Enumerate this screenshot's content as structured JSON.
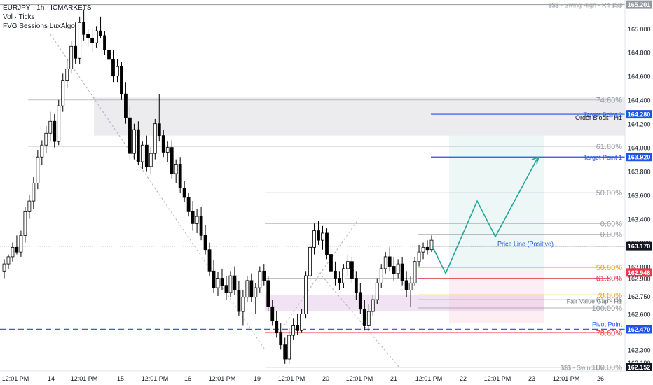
{
  "legend": {
    "symbol": "EURJPY · 1h · ICMARKETS",
    "indicator_1": "Vol · Ticks",
    "indicator_2": "FVG Sessions LuxAlgo"
  },
  "colors": {
    "bull": "#ffffff",
    "bear": "#000000",
    "price_tag": "#131722",
    "level_tag": "#1e53e5",
    "red_tag": "#f23645",
    "fib_gray": "#9598a1",
    "fib_orange": "#ff9800",
    "fib_red": "#f23645",
    "pivot": "#2962ff",
    "teal": "#26a69a"
  },
  "chart_data": {
    "type": "candlestick",
    "symbol": "EURJPY",
    "timeframe": "1h",
    "y_axis": {
      "ticks": [
        "165.000",
        "164.800",
        "164.600",
        "164.400",
        "164.200",
        "164.000",
        "163.800",
        "163.600",
        "163.400",
        "163.200",
        "163.000",
        "162.900",
        "162.750",
        "162.600",
        "162.300",
        "162.190"
      ],
      "ylim": [
        162.12,
        165.24
      ]
    },
    "x_axis": {
      "ticks": [
        "12:01 PM",
        "14",
        "12:01 PM",
        "15",
        "12:01 PM",
        "16",
        "12:01 PM",
        "19",
        "12:01 PM",
        "20",
        "12:01 PM",
        "21",
        "12:01 PM",
        "22",
        "12:01 PM",
        "23",
        "12:01 PM",
        "26"
      ]
    },
    "price_tags": [
      {
        "label": "165.201",
        "value": 165.201,
        "kind": "gray"
      },
      {
        "label": "164.280",
        "value": 164.28,
        "kind": "blue"
      },
      {
        "label": "163.920",
        "value": 163.92,
        "kind": "blue"
      },
      {
        "label": "163.170",
        "value": 163.17,
        "kind": "dark"
      },
      {
        "label": "162.948",
        "value": 162.948,
        "kind": "red"
      },
      {
        "label": "162.470",
        "value": 162.47,
        "kind": "blue"
      },
      {
        "label": "162.152",
        "value": 162.152,
        "kind": "dark"
      }
    ],
    "annotations": {
      "swing_high": "$$$ - Swing High - R4 $$$",
      "swing_low": "$$$ - Swing Lo",
      "order_block": "Order Block - H1",
      "target_point_2": "Target Point 2",
      "target_point_1": "Target Point 1",
      "price_line": "Price Line (Positive)",
      "fvg": "Fair Value Gap - H1",
      "pivot_point": "Pivot Point"
    },
    "fib_left": [
      {
        "label": "74.60%",
        "value": 164.4,
        "color": "gray"
      },
      {
        "label": "61.80%",
        "value": 164.01,
        "color": "gray"
      },
      {
        "label": "50.00%",
        "value": 163.62,
        "color": "gray"
      },
      {
        "label": "0.00%",
        "value": 163.36,
        "color": "gray"
      },
      {
        "label": "61.80%",
        "value": 162.9,
        "color": "gray"
      },
      {
        "label": "78.60%",
        "value": 162.44,
        "color": "red"
      },
      {
        "label": "100.00%",
        "value": 162.152,
        "color": "gray"
      }
    ],
    "fib_right": [
      {
        "label": "0.00%",
        "value": 163.27,
        "color": "gray"
      },
      {
        "label": "50.00%",
        "value": 162.99,
        "color": "orange"
      },
      {
        "label": "61.80%",
        "value": 162.9,
        "color": "red"
      },
      {
        "label": "78.60%",
        "value": 162.76,
        "color": "orange"
      },
      {
        "label": "61.80%",
        "value": 162.72,
        "color": "gray"
      },
      {
        "label": "100.00%",
        "value": 162.65,
        "color": "gray"
      }
    ],
    "candles": [
      [
        162.96,
        163.06,
        162.9,
        163.02
      ],
      [
        163.02,
        163.1,
        162.98,
        163.08
      ],
      [
        163.08,
        163.2,
        163.04,
        163.16
      ],
      [
        163.16,
        163.26,
        163.1,
        163.12
      ],
      [
        163.12,
        163.3,
        163.08,
        163.26
      ],
      [
        163.26,
        163.5,
        163.2,
        163.46
      ],
      [
        163.46,
        163.6,
        163.4,
        163.55
      ],
      [
        163.55,
        163.75,
        163.48,
        163.7
      ],
      [
        163.7,
        163.98,
        163.65,
        163.92
      ],
      [
        163.92,
        164.06,
        163.85,
        164.02
      ],
      [
        164.02,
        164.18,
        163.95,
        164.12
      ],
      [
        164.12,
        164.3,
        164.05,
        164.22
      ],
      [
        164.22,
        164.28,
        164.0,
        164.05
      ],
      [
        164.05,
        164.4,
        164.02,
        164.35
      ],
      [
        164.35,
        164.62,
        164.3,
        164.56
      ],
      [
        164.56,
        164.74,
        164.5,
        164.66
      ],
      [
        164.66,
        164.9,
        164.62,
        164.85
      ],
      [
        164.85,
        165.05,
        164.7,
        164.75
      ],
      [
        164.75,
        165.1,
        164.7,
        165.05
      ],
      [
        165.05,
        165.16,
        164.9,
        164.95
      ],
      [
        164.95,
        165.0,
        164.85,
        164.92
      ],
      [
        164.92,
        165.0,
        164.8,
        164.88
      ],
      [
        164.88,
        165.02,
        164.84,
        164.98
      ],
      [
        164.98,
        165.1,
        164.92,
        164.94
      ],
      [
        164.94,
        164.98,
        164.78,
        164.82
      ],
      [
        164.82,
        164.9,
        164.7,
        164.74
      ],
      [
        164.74,
        164.82,
        164.55,
        164.6
      ],
      [
        164.6,
        164.74,
        164.55,
        164.68
      ],
      [
        164.68,
        164.72,
        164.4,
        164.45
      ],
      [
        164.45,
        164.55,
        164.2,
        164.25
      ],
      [
        164.25,
        164.35,
        163.9,
        163.95
      ],
      [
        163.95,
        164.2,
        163.9,
        164.15
      ],
      [
        164.15,
        164.22,
        163.85,
        163.88
      ],
      [
        163.88,
        164.05,
        163.82,
        164.02
      ],
      [
        164.02,
        164.1,
        163.8,
        163.84
      ],
      [
        163.84,
        164.0,
        163.78,
        163.95
      ],
      [
        163.95,
        164.24,
        163.9,
        164.2
      ],
      [
        164.2,
        164.45,
        164.05,
        164.1
      ],
      [
        164.1,
        164.15,
        163.92,
        163.96
      ],
      [
        163.96,
        164.05,
        163.88,
        164.0
      ],
      [
        164.0,
        164.06,
        163.74,
        163.78
      ],
      [
        163.78,
        163.9,
        163.7,
        163.86
      ],
      [
        163.86,
        163.92,
        163.62,
        163.66
      ],
      [
        163.66,
        163.72,
        163.54,
        163.58
      ],
      [
        163.58,
        163.62,
        163.42,
        163.46
      ],
      [
        163.46,
        163.55,
        163.3,
        163.36
      ],
      [
        163.36,
        163.48,
        163.28,
        163.42
      ],
      [
        163.42,
        163.5,
        163.22,
        163.26
      ],
      [
        163.26,
        163.35,
        163.1,
        163.14
      ],
      [
        163.14,
        163.2,
        162.92,
        162.96
      ],
      [
        162.96,
        163.05,
        162.78,
        162.82
      ],
      [
        162.82,
        162.95,
        162.75,
        162.9
      ],
      [
        162.9,
        162.98,
        162.8,
        162.84
      ],
      [
        162.84,
        162.92,
        162.72,
        162.78
      ],
      [
        162.78,
        162.96,
        162.74,
        162.92
      ],
      [
        162.92,
        163.0,
        162.76,
        162.8
      ],
      [
        162.8,
        162.88,
        162.58,
        162.62
      ],
      [
        162.62,
        162.8,
        162.5,
        162.74
      ],
      [
        162.74,
        162.92,
        162.7,
        162.88
      ],
      [
        162.88,
        162.94,
        162.7,
        162.74
      ],
      [
        162.74,
        162.86,
        162.6,
        162.82
      ],
      [
        162.82,
        163.0,
        162.78,
        162.96
      ],
      [
        162.96,
        163.02,
        162.84,
        162.88
      ],
      [
        162.88,
        162.92,
        162.62,
        162.66
      ],
      [
        162.66,
        162.72,
        162.5,
        162.54
      ],
      [
        162.54,
        162.62,
        162.4,
        162.44
      ],
      [
        162.44,
        162.52,
        162.3,
        162.34
      ],
      [
        162.34,
        162.4,
        162.18,
        162.22
      ],
      [
        162.22,
        162.48,
        162.18,
        162.42
      ],
      [
        162.42,
        162.56,
        162.38,
        162.5
      ],
      [
        162.5,
        162.6,
        162.42,
        162.46
      ],
      [
        162.46,
        162.64,
        162.44,
        162.6
      ],
      [
        162.6,
        162.96,
        162.56,
        162.92
      ],
      [
        162.92,
        163.2,
        162.88,
        163.16
      ],
      [
        163.16,
        163.36,
        163.1,
        163.3
      ],
      [
        163.3,
        163.38,
        163.18,
        163.22
      ],
      [
        163.22,
        163.34,
        163.14,
        163.28
      ],
      [
        163.28,
        163.32,
        163.06,
        163.1
      ],
      [
        163.1,
        163.18,
        162.92,
        162.96
      ],
      [
        162.96,
        163.04,
        162.84,
        162.9
      ],
      [
        162.9,
        162.96,
        162.8,
        162.86
      ],
      [
        162.86,
        163.02,
        162.82,
        162.98
      ],
      [
        162.98,
        163.1,
        162.92,
        163.04
      ],
      [
        163.04,
        163.08,
        162.86,
        162.9
      ],
      [
        162.9,
        162.96,
        162.72,
        162.78
      ],
      [
        162.78,
        162.86,
        162.6,
        162.64
      ],
      [
        162.64,
        162.72,
        162.46,
        162.5
      ],
      [
        162.5,
        162.68,
        162.46,
        162.62
      ],
      [
        162.62,
        162.76,
        162.58,
        162.72
      ],
      [
        162.72,
        162.9,
        162.68,
        162.86
      ],
      [
        162.86,
        163.02,
        162.82,
        162.98
      ],
      [
        162.98,
        163.12,
        162.94,
        163.08
      ],
      [
        163.08,
        163.16,
        162.96,
        163.0
      ],
      [
        163.0,
        163.08,
        162.88,
        162.94
      ],
      [
        162.94,
        163.06,
        162.9,
        163.02
      ],
      [
        163.02,
        163.08,
        162.84,
        162.88
      ],
      [
        162.88,
        162.96,
        162.74,
        162.8
      ],
      [
        162.8,
        162.92,
        162.66,
        162.86
      ],
      [
        162.86,
        163.08,
        162.84,
        163.04
      ],
      [
        163.04,
        163.18,
        163.0,
        163.12
      ],
      [
        163.12,
        163.2,
        163.06,
        163.16
      ],
      [
        163.16,
        163.22,
        163.1,
        163.14
      ],
      [
        163.14,
        163.26,
        163.12,
        163.22
      ]
    ],
    "projection": [
      [
        0,
        162.94
      ],
      [
        1,
        163.55
      ],
      [
        2,
        163.25
      ],
      [
        3,
        163.92
      ]
    ]
  }
}
